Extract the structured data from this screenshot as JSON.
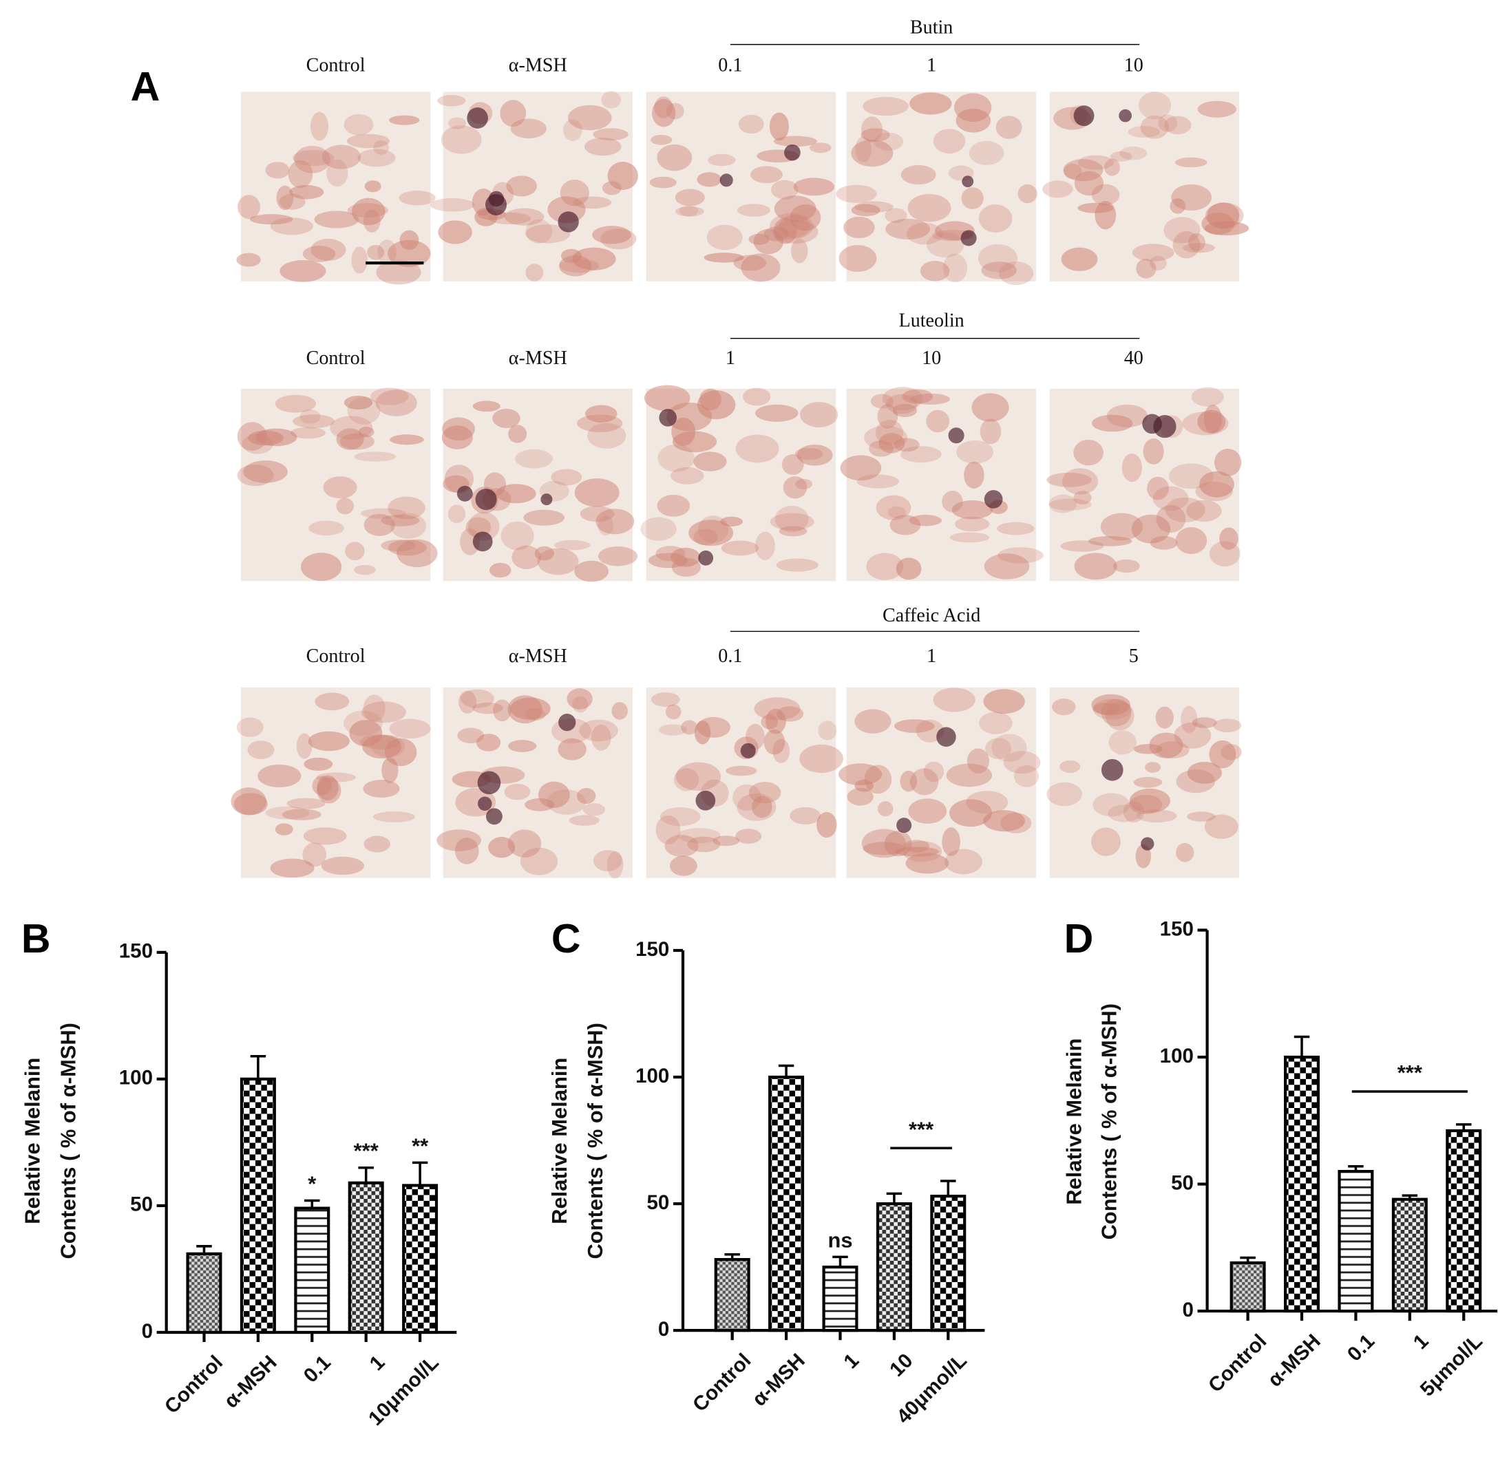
{
  "panel_a": {
    "label": "A",
    "rows": [
      {
        "group": "Butin",
        "columns": [
          "Control",
          "α-MSH",
          "0.1",
          "1",
          "10"
        ]
      },
      {
        "group": "Luteolin",
        "columns": [
          "Control",
          "α-MSH",
          "1",
          "10",
          "40"
        ]
      },
      {
        "group": "Caffeic Acid",
        "columns": [
          "Control",
          "α-MSH",
          "0.1",
          "1",
          "5"
        ]
      }
    ]
  },
  "chart_data": [
    {
      "type": "bar",
      "panel": "B",
      "ylabel": [
        "Relative Melanin",
        "Contents ( % of α-MSH)"
      ],
      "categories": [
        "Control",
        "α-MSH",
        "0.1",
        "1",
        "10μmol/L"
      ],
      "values": [
        31,
        100,
        49,
        59,
        58
      ],
      "errors": [
        3,
        9,
        3,
        6,
        9
      ],
      "annotations": [
        null,
        null,
        "*",
        "***",
        "**"
      ],
      "patterns": [
        "fine-check",
        "check",
        "stripes",
        "mid-check",
        "check"
      ],
      "color": "#000000",
      "ylim": [
        0,
        150
      ],
      "yticks": [
        0,
        50,
        100,
        150
      ]
    },
    {
      "type": "bar",
      "panel": "C",
      "ylabel": [
        "Relative Melanin",
        "Contents ( % of α-MSH)"
      ],
      "categories": [
        "Control",
        "α-MSH",
        "1",
        "10",
        "40μmol/L"
      ],
      "values": [
        28,
        100,
        25,
        50,
        53
      ],
      "errors": [
        2,
        4.5,
        4,
        4,
        6
      ],
      "annotations": [
        null,
        null,
        "ns",
        null,
        null
      ],
      "bracket": {
        "label": "***",
        "span": [
          "10",
          "40μmol/L"
        ]
      },
      "patterns": [
        "fine-check",
        "check",
        "stripes",
        "mid-check",
        "check"
      ],
      "color": "#000000",
      "ylim": [
        0,
        150
      ],
      "yticks": [
        0,
        50,
        100,
        150
      ]
    },
    {
      "type": "bar",
      "panel": "D",
      "ylabel": [
        "Relative Melanin",
        "Contents ( % of α-MSH)"
      ],
      "categories": [
        "Control",
        "α-MSH",
        "0.1",
        "1",
        "5μmol/L"
      ],
      "values": [
        19,
        100,
        55,
        44,
        71
      ],
      "errors": [
        2,
        8,
        2,
        1.5,
        2.5
      ],
      "bracket": {
        "label": "***",
        "span": [
          "0.1",
          "5μmol/L"
        ]
      },
      "patterns": [
        "fine-check",
        "check",
        "stripes",
        "mid-check",
        "check"
      ],
      "color": "#000000",
      "ylim": [
        0,
        150
      ],
      "yticks": [
        0,
        50,
        100,
        150
      ]
    }
  ]
}
